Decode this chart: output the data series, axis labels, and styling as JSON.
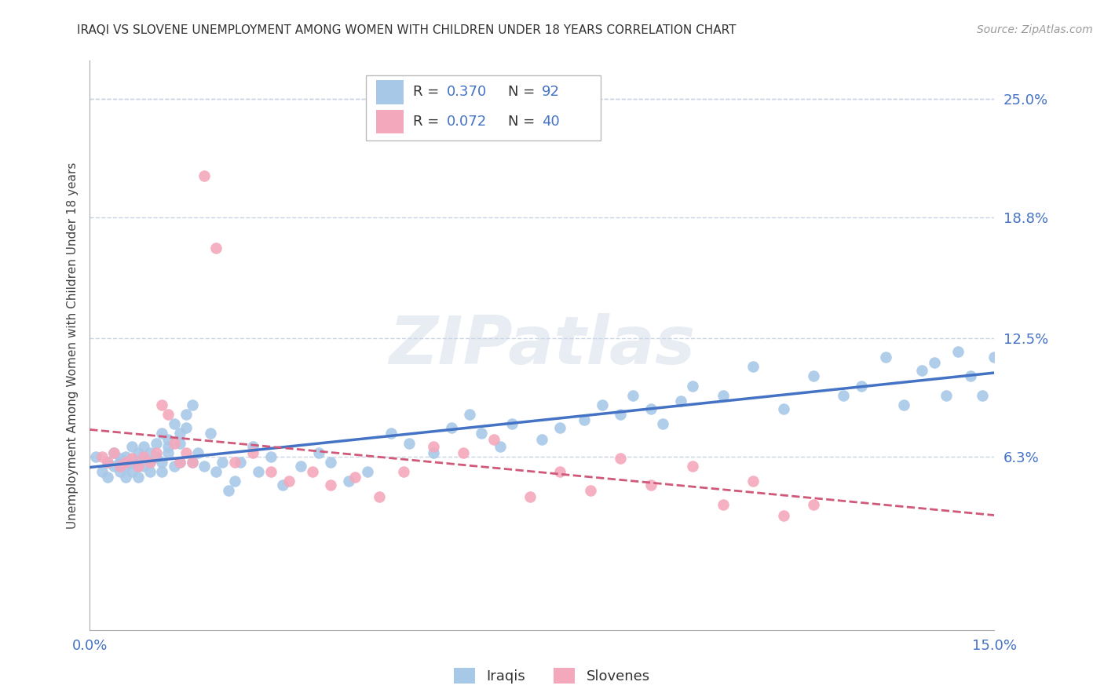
{
  "title": "IRAQI VS SLOVENE UNEMPLOYMENT AMONG WOMEN WITH CHILDREN UNDER 18 YEARS CORRELATION CHART",
  "source": "Source: ZipAtlas.com",
  "ylabel": "Unemployment Among Women with Children Under 18 years",
  "xlim": [
    0.0,
    0.15
  ],
  "ylim": [
    -0.028,
    0.27
  ],
  "ytick_labels_right": [
    "25.0%",
    "18.8%",
    "12.5%",
    "6.3%"
  ],
  "ytick_vals_right": [
    0.25,
    0.188,
    0.125,
    0.063
  ],
  "iraqi_color": "#a8c8e8",
  "slovene_color": "#f4a8bc",
  "iraqi_line_color": "#4472c4",
  "slovene_line_color": "#d05878",
  "R_iraqi": 0.37,
  "N_iraqi": 92,
  "R_slovene": 0.072,
  "N_slovene": 40,
  "background_color": "#ffffff",
  "grid_color": "#c8d4e4",
  "watermark": "ZIPatlas",
  "iraqi_x": [
    0.001,
    0.002,
    0.003,
    0.003,
    0.004,
    0.004,
    0.005,
    0.005,
    0.005,
    0.006,
    0.006,
    0.006,
    0.007,
    0.007,
    0.007,
    0.008,
    0.008,
    0.008,
    0.008,
    0.009,
    0.009,
    0.009,
    0.01,
    0.01,
    0.01,
    0.011,
    0.011,
    0.012,
    0.012,
    0.012,
    0.013,
    0.013,
    0.013,
    0.014,
    0.014,
    0.015,
    0.015,
    0.015,
    0.016,
    0.016,
    0.017,
    0.017,
    0.018,
    0.019,
    0.02,
    0.021,
    0.022,
    0.023,
    0.024,
    0.025,
    0.027,
    0.028,
    0.03,
    0.032,
    0.035,
    0.038,
    0.04,
    0.043,
    0.046,
    0.05,
    0.053,
    0.057,
    0.06,
    0.063,
    0.065,
    0.068,
    0.07,
    0.075,
    0.078,
    0.082,
    0.085,
    0.088,
    0.09,
    0.093,
    0.095,
    0.098,
    0.1,
    0.105,
    0.11,
    0.115,
    0.12,
    0.125,
    0.128,
    0.132,
    0.135,
    0.138,
    0.14,
    0.142,
    0.144,
    0.146,
    0.148,
    0.15
  ],
  "iraqi_y": [
    0.063,
    0.055,
    0.06,
    0.052,
    0.058,
    0.065,
    0.055,
    0.06,
    0.062,
    0.058,
    0.063,
    0.052,
    0.06,
    0.055,
    0.068,
    0.06,
    0.058,
    0.065,
    0.052,
    0.068,
    0.063,
    0.058,
    0.06,
    0.065,
    0.055,
    0.07,
    0.063,
    0.075,
    0.06,
    0.055,
    0.068,
    0.072,
    0.065,
    0.08,
    0.058,
    0.075,
    0.07,
    0.06,
    0.085,
    0.078,
    0.09,
    0.06,
    0.065,
    0.058,
    0.075,
    0.055,
    0.06,
    0.045,
    0.05,
    0.06,
    0.068,
    0.055,
    0.063,
    0.048,
    0.058,
    0.065,
    0.06,
    0.05,
    0.055,
    0.075,
    0.07,
    0.065,
    0.078,
    0.085,
    0.075,
    0.068,
    0.08,
    0.072,
    0.078,
    0.082,
    0.09,
    0.085,
    0.095,
    0.088,
    0.08,
    0.092,
    0.1,
    0.095,
    0.11,
    0.088,
    0.105,
    0.095,
    0.1,
    0.115,
    0.09,
    0.108,
    0.112,
    0.095,
    0.118,
    0.105,
    0.095,
    0.115
  ],
  "slovene_x": [
    0.002,
    0.003,
    0.004,
    0.005,
    0.006,
    0.007,
    0.008,
    0.009,
    0.01,
    0.011,
    0.012,
    0.013,
    0.014,
    0.015,
    0.016,
    0.017,
    0.019,
    0.021,
    0.024,
    0.027,
    0.03,
    0.033,
    0.037,
    0.04,
    0.044,
    0.048,
    0.052,
    0.057,
    0.062,
    0.067,
    0.073,
    0.078,
    0.083,
    0.088,
    0.093,
    0.1,
    0.105,
    0.11,
    0.115,
    0.12
  ],
  "slovene_y": [
    0.063,
    0.06,
    0.065,
    0.058,
    0.06,
    0.062,
    0.058,
    0.063,
    0.06,
    0.065,
    0.09,
    0.085,
    0.07,
    0.06,
    0.065,
    0.06,
    0.21,
    0.172,
    0.06,
    0.065,
    0.055,
    0.05,
    0.055,
    0.048,
    0.052,
    0.042,
    0.055,
    0.068,
    0.065,
    0.072,
    0.042,
    0.055,
    0.045,
    0.062,
    0.048,
    0.058,
    0.038,
    0.05,
    0.032,
    0.038
  ]
}
